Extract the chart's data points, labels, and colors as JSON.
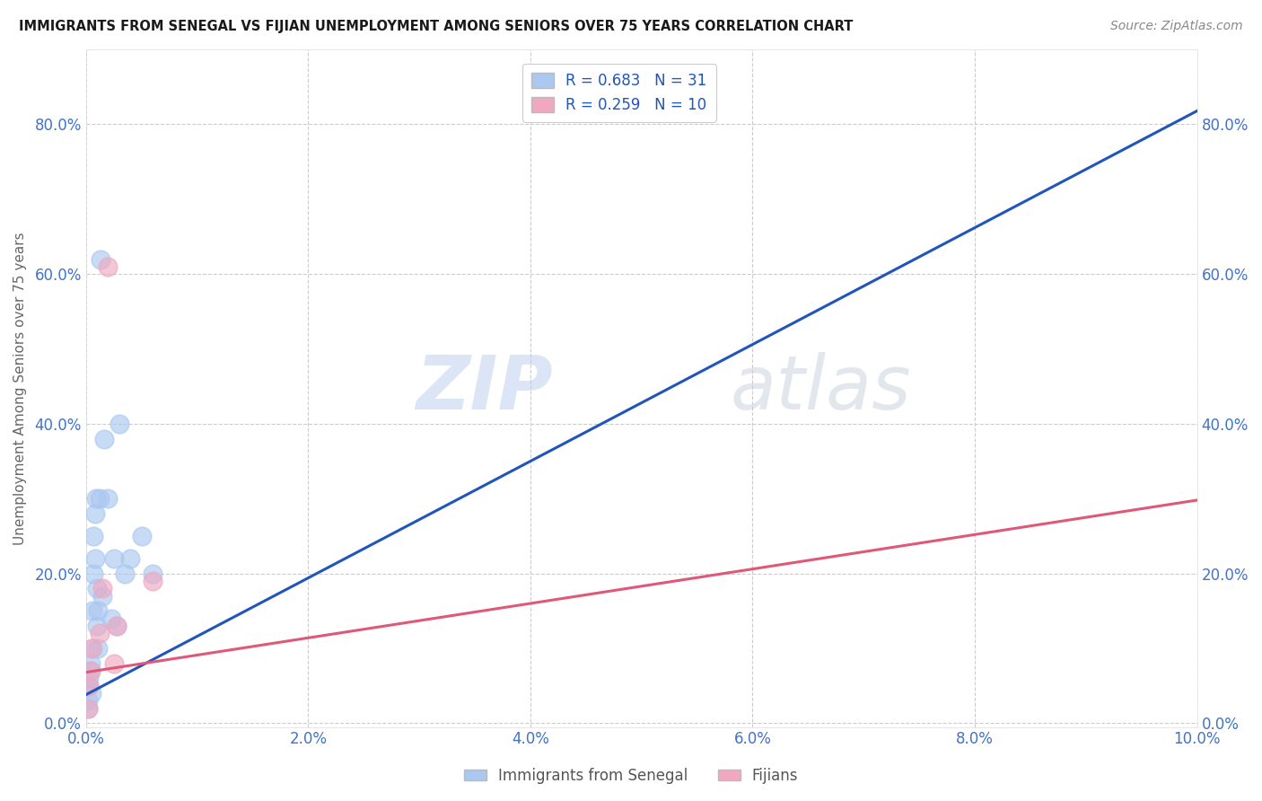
{
  "title": "IMMIGRANTS FROM SENEGAL VS FIJIAN UNEMPLOYMENT AMONG SENIORS OVER 75 YEARS CORRELATION CHART",
  "source": "Source: ZipAtlas.com",
  "tick_color": "#4472c4",
  "ylabel": "Unemployment Among Seniors over 75 years",
  "watermark_zip": "ZIP",
  "watermark_atlas": "atlas",
  "legend_r1": "R = 0.683",
  "legend_n1": "N = 31",
  "legend_r2": "R = 0.259",
  "legend_n2": "N = 10",
  "legend_label1": "Immigrants from Senegal",
  "legend_label2": "Fijians",
  "senegal_color": "#aac8f0",
  "fijian_color": "#f0a8c0",
  "line1_color": "#2255bb",
  "line2_color": "#e05878",
  "xlim": [
    0.0,
    0.1
  ],
  "ylim": [
    -0.005,
    0.9
  ],
  "xticks": [
    0.0,
    0.02,
    0.04,
    0.06,
    0.08,
    0.1
  ],
  "yticks": [
    0.0,
    0.2,
    0.4,
    0.6,
    0.8
  ],
  "senegal_x": [
    0.0002,
    0.0002,
    0.0003,
    0.0003,
    0.0004,
    0.0004,
    0.0005,
    0.0006,
    0.0006,
    0.0007,
    0.0007,
    0.0008,
    0.0008,
    0.0009,
    0.001,
    0.001,
    0.0011,
    0.0011,
    0.0012,
    0.0013,
    0.0015,
    0.0016,
    0.002,
    0.0023,
    0.0025,
    0.0028,
    0.003,
    0.0035,
    0.004,
    0.005,
    0.006
  ],
  "senegal_y": [
    0.02,
    0.03,
    0.05,
    0.06,
    0.07,
    0.08,
    0.04,
    0.1,
    0.15,
    0.2,
    0.25,
    0.22,
    0.28,
    0.3,
    0.13,
    0.18,
    0.1,
    0.15,
    0.3,
    0.62,
    0.17,
    0.38,
    0.3,
    0.14,
    0.22,
    0.13,
    0.4,
    0.2,
    0.22,
    0.25,
    0.2
  ],
  "fijian_x": [
    0.0002,
    0.0003,
    0.0004,
    0.0005,
    0.0012,
    0.0015,
    0.002,
    0.0025,
    0.0028,
    0.006
  ],
  "fijian_y": [
    0.02,
    0.05,
    0.07,
    0.1,
    0.12,
    0.18,
    0.61,
    0.08,
    0.13,
    0.19
  ],
  "bg_color": "#ffffff",
  "grid_color": "#cccccc"
}
